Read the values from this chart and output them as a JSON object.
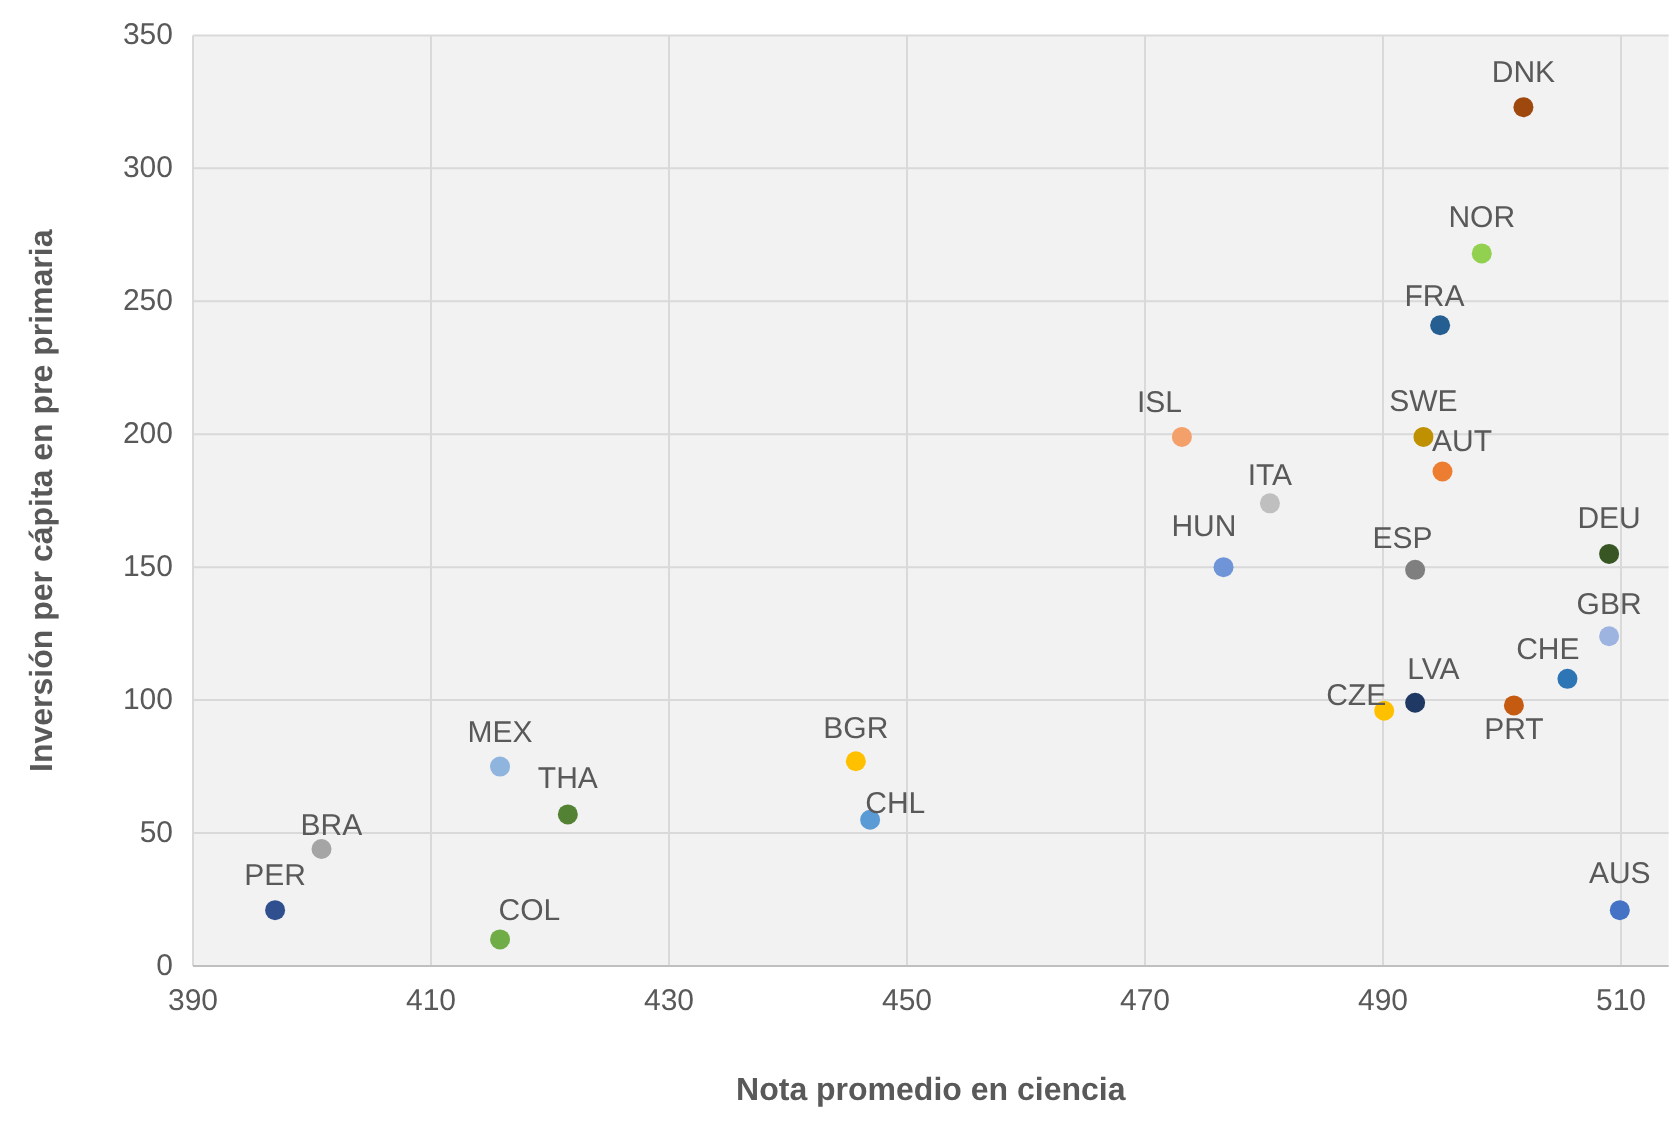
{
  "chart_data": {
    "type": "scatter",
    "xlabel": "Nota promedio en ciencia",
    "ylabel": "Inversión per cápita en pre primaria",
    "xlim": [
      390,
      514
    ],
    "xticks": [
      390,
      410,
      430,
      450,
      470,
      490,
      510
    ],
    "ylim": [
      0,
      350
    ],
    "yticks": [
      0,
      50,
      100,
      150,
      200,
      250,
      300,
      350
    ],
    "grid": true,
    "marker": "circle",
    "series": [
      {
        "name": "PER",
        "color": "#2f4f8f",
        "x": [
          396.9
        ],
        "values": [
          21
        ]
      },
      {
        "name": "BRA",
        "color": "#a5a5a5",
        "x": [
          400.8
        ],
        "values": [
          44
        ]
      },
      {
        "name": "MEX",
        "color": "#8fb4de",
        "x": [
          415.8
        ],
        "values": [
          75
        ]
      },
      {
        "name": "THA",
        "color": "#548235",
        "x": [
          421.5
        ],
        "values": [
          57
        ]
      },
      {
        "name": "COL",
        "color": "#70ad47",
        "x": [
          415.8
        ],
        "values": [
          10
        ]
      },
      {
        "name": "BGR",
        "color": "#ffc000",
        "x": [
          445.7
        ],
        "values": [
          77
        ]
      },
      {
        "name": "CHL",
        "color": "#5b9bd5",
        "x": [
          446.9
        ],
        "values": [
          55
        ]
      },
      {
        "name": "ISL",
        "color": "#f4a06a",
        "x": [
          473.1
        ],
        "values": [
          199
        ]
      },
      {
        "name": "SWE",
        "color": "#bf9000",
        "x": [
          493.4
        ],
        "values": [
          199
        ]
      },
      {
        "name": "AUT",
        "color": "#ed7d31",
        "x": [
          495.0
        ],
        "values": [
          186
        ]
      },
      {
        "name": "ITA",
        "color": "#bfbfbf",
        "x": [
          480.5
        ],
        "values": [
          174
        ]
      },
      {
        "name": "HUN",
        "color": "#6f95d8",
        "x": [
          476.6
        ],
        "values": [
          150
        ]
      },
      {
        "name": "ESP",
        "color": "#7f7f7f",
        "x": [
          492.7
        ],
        "values": [
          149
        ]
      },
      {
        "name": "DEU",
        "color": "#375623",
        "x": [
          509.0
        ],
        "values": [
          155
        ]
      },
      {
        "name": "GBR",
        "color": "#9db3e0",
        "x": [
          509.0
        ],
        "values": [
          124
        ]
      },
      {
        "name": "CHE",
        "color": "#2e75b6",
        "x": [
          505.5
        ],
        "values": [
          108
        ]
      },
      {
        "name": "LVA",
        "color": "#203864",
        "x": [
          492.7
        ],
        "values": [
          99
        ]
      },
      {
        "name": "CZE",
        "color": "#ffc000",
        "x": [
          490.1
        ],
        "values": [
          96
        ]
      },
      {
        "name": "PRT",
        "color": "#c55a11",
        "x": [
          501.0
        ],
        "values": [
          98
        ]
      },
      {
        "name": "AUS",
        "color": "#4472c4",
        "x": [
          509.9
        ],
        "values": [
          21
        ]
      },
      {
        "name": "DNK",
        "color": "#9e480e",
        "x": [
          501.8
        ],
        "values": [
          323
        ]
      },
      {
        "name": "NOR",
        "color": "#92d050",
        "x": [
          498.3
        ],
        "values": [
          268
        ]
      },
      {
        "name": "FRA",
        "color": "#255e91",
        "x": [
          494.8
        ],
        "values": [
          241
        ]
      }
    ]
  }
}
